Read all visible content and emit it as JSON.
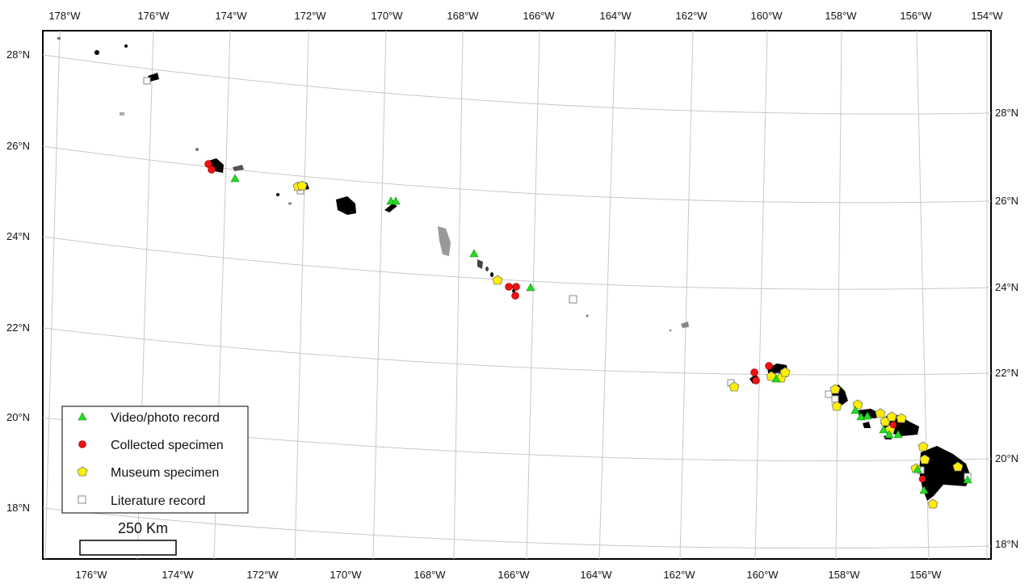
{
  "map": {
    "top_lon_labels": [
      "178°W",
      "176°W",
      "174°W",
      "172°W",
      "170°W",
      "168°W",
      "166°W",
      "164°W",
      "162°W",
      "160°W",
      "158°W",
      "156°W",
      "154°W"
    ],
    "bottom_lon_labels": [
      "176°W",
      "174°W",
      "172°W",
      "170°W",
      "168°W",
      "166°W",
      "164°W",
      "162°W",
      "160°W",
      "158°W",
      "156°W"
    ],
    "left_lat_labels": [
      "28°N",
      "26°N",
      "24°N",
      "22°N",
      "20°N",
      "18°N"
    ],
    "right_lat_labels": [
      "28°N",
      "26°N",
      "24°N",
      "22°N",
      "20°N",
      "18°N"
    ],
    "legend": {
      "items": [
        {
          "label": "Video/photo record",
          "symbol": "triangle",
          "color": "#22dd22"
        },
        {
          "label": "Collected specimen",
          "symbol": "circle",
          "color": "#ee1111"
        },
        {
          "label": "Museum specimen",
          "symbol": "pentagon",
          "color": "#ffee00"
        },
        {
          "label": "Literature record",
          "symbol": "square",
          "color": "#ffffff"
        }
      ]
    },
    "scale_bar": {
      "label": "250 Km"
    },
    "colors": {
      "land": "#000000",
      "shoal": "#777777",
      "graticule": "#c8c8c8",
      "frame": "#000000"
    }
  }
}
